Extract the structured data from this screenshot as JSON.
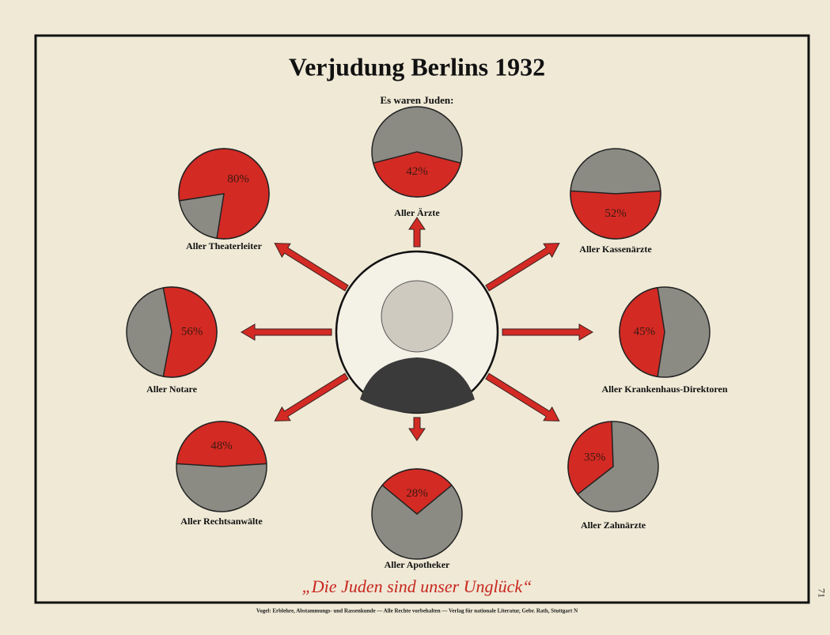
{
  "header": {
    "title": "Verjudung Berlins 1932",
    "subtitle": "Es waren Juden:"
  },
  "chart_data": [
    {
      "type": "pie",
      "title": "Aller Theaterleiter",
      "values": [
        80
      ],
      "value_labels": [
        "80%"
      ],
      "color": "#d42a24"
    },
    {
      "type": "pie",
      "title": "Aller Ärzte",
      "values": [
        42
      ],
      "value_labels": [
        "42%"
      ],
      "color": "#d42a24"
    },
    {
      "type": "pie",
      "title": "Aller Kassenärzte",
      "values": [
        52
      ],
      "value_labels": [
        "52%"
      ],
      "color": "#d42a24"
    },
    {
      "type": "pie",
      "title": "Aller Notare",
      "values": [
        56
      ],
      "value_labels": [
        "56%"
      ],
      "color": "#d42a24"
    },
    {
      "type": "pie",
      "title": "Aller Krankenhaus-Direktoren",
      "values": [
        45
      ],
      "value_labels": [
        "45%"
      ],
      "color": "#d42a24"
    },
    {
      "type": "pie",
      "title": "Aller Rechtsanwälte",
      "values": [
        48
      ],
      "value_labels": [
        "48%"
      ],
      "color": "#d42a24"
    },
    {
      "type": "pie",
      "title": "Aller Apotheker",
      "values": [
        28
      ],
      "value_labels": [
        "28%"
      ],
      "color": "#d42a24"
    },
    {
      "type": "pie",
      "title": "Aller Zahnärzte",
      "values": [
        35
      ],
      "value_labels": [
        "35%"
      ],
      "color": "#d42a24"
    }
  ],
  "footer": {
    "slogan": "„Die Juden sind unser Unglück“",
    "publisher": "Vogel: Erblehre, Abstammungs- und Rassenkunde — Alle Rechte vorbehalten — Verlag für nationale Literatur, Gebr. Rath, Stuttgart N",
    "page_number": "71"
  }
}
